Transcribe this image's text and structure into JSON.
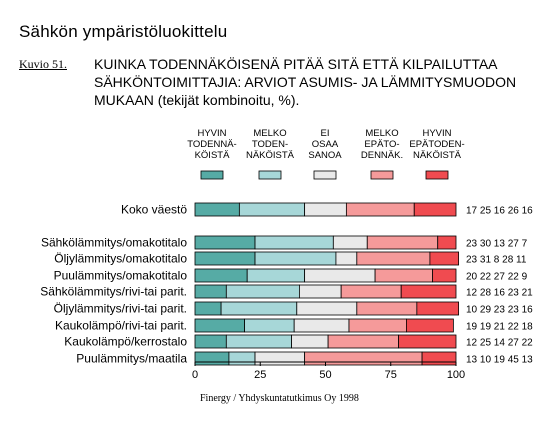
{
  "header": {
    "title": "Sähkön ympäristöluokittelu",
    "figure_label": "Kuvio 51.",
    "subtitle": "KUINKA TODENNÄKÖISENÄ PITÄÄ SITÄ ETTÄ KILPAILUTTAA SÄHKÖNTOIMITTAJIA: ARVIOT ASUMIS- JA LÄMMITYSMUODON MUKAAN (tekijät kombinoitu, %)."
  },
  "source": "Finergy / Yhdyskuntatutkimus Oy 1998",
  "colors": {
    "hyvin_todennakoista": "#56aba5",
    "melko_todennakoista": "#a7d7d8",
    "ei_osaa_sanoa": "#e9e9e9",
    "melko_epatodennak": "#f59a9a",
    "hyvin_epatodennakoista": "#f04b50"
  },
  "chart_data": {
    "type": "bar",
    "orientation": "horizontal",
    "stacked": true,
    "categories": [
      "Koko väestö",
      "Sähkölämmitys/omakotitalo",
      "Öljylämmitys/omakotitalo",
      "Puulämmitys/omakotitalo",
      "Sähkölämmitys/rivi-tai parit.",
      "Öljylämmitys/rivi-tai parit.",
      "Kaukolämpö/rivi-tai parit.",
      "Kaukolämpö/kerrostalo",
      "Puulämmitys/maatila"
    ],
    "series": [
      {
        "name": "HYVIN TODENNÄ-KÖISTÄ",
        "legend_lines": [
          "HYVIN",
          "TODENNÄ-",
          "KÖISTÄ"
        ],
        "values": [
          17,
          23,
          23,
          20,
          12,
          10,
          19,
          12,
          13
        ]
      },
      {
        "name": "MELKO TODEN-NÄKÖISTÄ",
        "legend_lines": [
          "MELKO",
          "TODEN-",
          "NÄKÖISTÄ"
        ],
        "values": [
          25,
          30,
          31,
          22,
          28,
          29,
          19,
          25,
          10
        ]
      },
      {
        "name": "EI OSAA SANOA",
        "legend_lines": [
          "EI",
          "OSAA",
          "SANOA"
        ],
        "values": [
          16,
          13,
          8,
          27,
          16,
          23,
          21,
          14,
          19
        ]
      },
      {
        "name": "MELKO EPÄTO-DENNÄK.",
        "legend_lines": [
          "MELKO",
          "EPÄTO-",
          "DENNÄK."
        ],
        "values": [
          26,
          27,
          28,
          22,
          23,
          23,
          22,
          27,
          45
        ]
      },
      {
        "name": "HYVIN EPÄTODEN-NÄKÖISTÄ",
        "legend_lines": [
          "HYVIN",
          "EPÄTODEN-",
          "NÄKÖISTÄ"
        ],
        "values": [
          16,
          7,
          11,
          9,
          21,
          16,
          18,
          22,
          13
        ]
      }
    ],
    "value_labels": [
      "17 25 16 26 16",
      "23 30 13 27 7",
      "23 31 8 28 11",
      "20 22 27 22 9",
      "12 28 16 23 21",
      "10 29 23 23 16",
      "19 19 21 22 18",
      "12 25 14 27 22",
      "13 10 19 45 13"
    ],
    "xlim": [
      0,
      100
    ],
    "xticks": [
      0,
      25,
      50,
      75,
      100
    ],
    "xlabel": "",
    "ylabel": ""
  }
}
